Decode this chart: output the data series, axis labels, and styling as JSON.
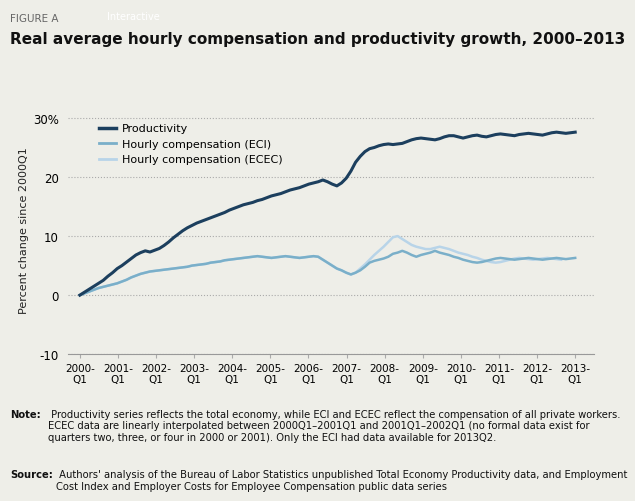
{
  "title": "Real average hourly compensation and productivity growth, 2000–2013",
  "figure_label": "FIGURE A",
  "ylabel": "Percent change since 2000Q1",
  "ylim": [
    -10,
    32
  ],
  "yticks": [
    -10,
    0,
    10,
    20,
    30
  ],
  "ytick_labels": [
    "-10",
    "0",
    "10",
    "20",
    "30%"
  ],
  "xlabel_ticks": [
    "2000-\nQ1",
    "2001-\nQ1",
    "2002-\nQ1",
    "2003-\nQ1",
    "2004-\nQ1",
    "2005-\nQ1",
    "2006-\nQ1",
    "2007-\nQ1",
    "2008-\nQ1",
    "2009-\nQ1",
    "2010-\nQ1",
    "2011-\nQ1",
    "2012-\nQ1",
    "2013-\nQ1"
  ],
  "background_color": "#eeeee8",
  "plot_bg_color": "#eeeee8",
  "line_colors": {
    "productivity": "#1c3f5e",
    "eci": "#7aafc9",
    "ecec": "#b8d4e8"
  },
  "note_bold": "Note:",
  "note_rest": " Productivity series reflects the total economy, while ECI and ECEC reflect the compensation of all private workers. ECEC data are linearly interpolated between 2000Q1–2001Q1 and 2001Q1–2002Q1 (no formal data exist for quarters two, three, or four in 2000 or 2001). Only the ECI had data available for 2013Q2.",
  "source_bold": "Source:",
  "source_rest": " Authors' analysis of the Bureau of Labor Statistics unpublished Total Economy Productivity data, and Employment Cost Index and Employer Costs for Employee Compensation public data series",
  "productivity": [
    0.0,
    0.5,
    1.0,
    1.5,
    2.0,
    2.5,
    3.2,
    3.8,
    4.5,
    5.0,
    5.6,
    6.2,
    6.8,
    7.2,
    7.5,
    7.3,
    7.6,
    7.9,
    8.4,
    9.0,
    9.7,
    10.3,
    10.9,
    11.4,
    11.8,
    12.2,
    12.5,
    12.8,
    13.1,
    13.4,
    13.7,
    14.0,
    14.4,
    14.7,
    15.0,
    15.3,
    15.5,
    15.7,
    16.0,
    16.2,
    16.5,
    16.8,
    17.0,
    17.2,
    17.5,
    17.8,
    18.0,
    18.2,
    18.5,
    18.8,
    19.0,
    19.2,
    19.5,
    19.2,
    18.8,
    18.5,
    19.0,
    19.8,
    21.0,
    22.5,
    23.5,
    24.3,
    24.8,
    25.0,
    25.3,
    25.5,
    25.6,
    25.5,
    25.6,
    25.7,
    26.0,
    26.3,
    26.5,
    26.6,
    26.5,
    26.4,
    26.3,
    26.5,
    26.8,
    27.0,
    27.0,
    26.8,
    26.6,
    26.8,
    27.0,
    27.1,
    26.9,
    26.8,
    27.0,
    27.2,
    27.3,
    27.2,
    27.1,
    27.0,
    27.2,
    27.3,
    27.4,
    27.3,
    27.2,
    27.1,
    27.3,
    27.5,
    27.6,
    27.5,
    27.4,
    27.5,
    27.6
  ],
  "eci": [
    0.0,
    0.3,
    0.6,
    0.9,
    1.2,
    1.4,
    1.6,
    1.8,
    2.0,
    2.3,
    2.6,
    3.0,
    3.3,
    3.6,
    3.8,
    4.0,
    4.1,
    4.2,
    4.3,
    4.4,
    4.5,
    4.6,
    4.7,
    4.8,
    5.0,
    5.1,
    5.2,
    5.3,
    5.5,
    5.6,
    5.7,
    5.9,
    6.0,
    6.1,
    6.2,
    6.3,
    6.4,
    6.5,
    6.6,
    6.5,
    6.4,
    6.3,
    6.4,
    6.5,
    6.6,
    6.5,
    6.4,
    6.3,
    6.4,
    6.5,
    6.6,
    6.5,
    6.0,
    5.5,
    5.0,
    4.5,
    4.2,
    3.8,
    3.5,
    3.8,
    4.2,
    4.8,
    5.5,
    5.8,
    6.0,
    6.2,
    6.5,
    7.0,
    7.2,
    7.5,
    7.2,
    6.8,
    6.5,
    6.8,
    7.0,
    7.2,
    7.5,
    7.2,
    7.0,
    6.8,
    6.5,
    6.3,
    6.0,
    5.8,
    5.6,
    5.5,
    5.6,
    5.8,
    6.0,
    6.2,
    6.3,
    6.2,
    6.1,
    6.0,
    6.1,
    6.2,
    6.3,
    6.2,
    6.1,
    6.0,
    6.1,
    6.2,
    6.3,
    6.2,
    6.1,
    6.2,
    6.3
  ],
  "ecec": [
    0.0,
    0.3,
    0.6,
    0.9,
    1.2,
    1.4,
    1.6,
    1.8,
    2.0,
    2.3,
    2.6,
    3.0,
    3.3,
    3.6,
    3.8,
    4.0,
    4.1,
    4.2,
    4.3,
    4.4,
    4.5,
    4.6,
    4.7,
    4.8,
    5.0,
    5.1,
    5.2,
    5.3,
    5.5,
    5.6,
    5.7,
    5.9,
    6.0,
    6.1,
    6.2,
    6.3,
    6.4,
    6.5,
    6.6,
    6.5,
    6.4,
    6.3,
    6.4,
    6.5,
    6.6,
    6.5,
    6.4,
    6.3,
    6.4,
    6.5,
    6.6,
    6.5,
    6.0,
    5.5,
    5.0,
    4.5,
    4.2,
    3.8,
    3.5,
    3.8,
    4.5,
    5.2,
    6.0,
    6.8,
    7.5,
    8.2,
    9.0,
    9.8,
    10.0,
    9.5,
    9.0,
    8.5,
    8.2,
    8.0,
    7.8,
    7.8,
    8.0,
    8.2,
    8.0,
    7.8,
    7.5,
    7.2,
    7.0,
    6.8,
    6.5,
    6.3,
    6.0,
    5.8,
    5.6,
    5.5,
    5.6,
    5.8,
    6.0,
    6.2,
    6.3,
    6.2,
    6.1,
    6.0,
    6.1,
    6.2,
    6.3,
    6.2,
    6.1,
    6.0,
    null,
    null,
    null
  ]
}
